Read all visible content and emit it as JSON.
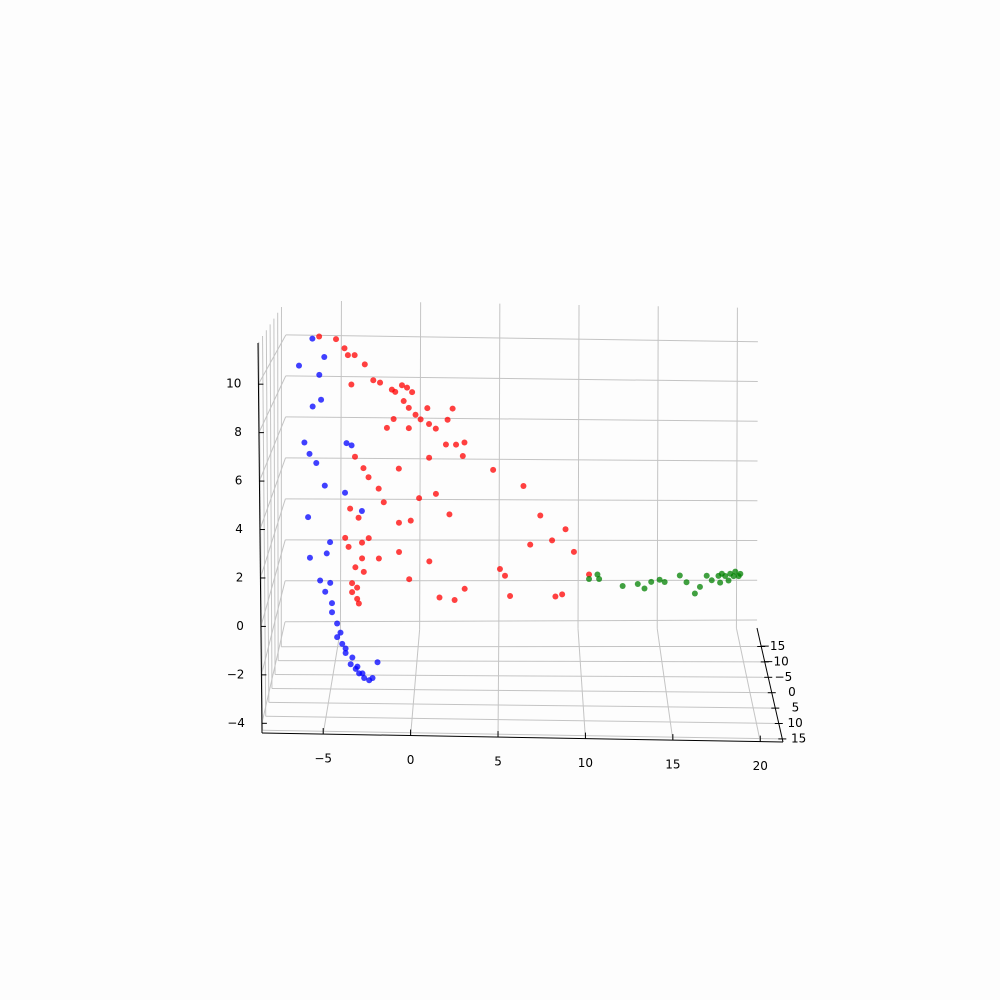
{
  "chart_data": {
    "type": "scatter3d",
    "xlim": [
      -8.5,
      21.3
    ],
    "ylim": [
      -21,
      16
    ],
    "zlim": [
      -4.4,
      11.7
    ],
    "xticks": [
      {
        "value": -5,
        "label": "−5"
      },
      0,
      5,
      10,
      15,
      20
    ],
    "yticks": [
      {
        "value": -15,
        "label": "−15"
      },
      {
        "value": -10,
        "label": "−10"
      },
      {
        "value": -5,
        "label": "−5"
      },
      0,
      5,
      10,
      15
    ],
    "zticks": [
      {
        "value": -4,
        "label": "−4"
      },
      {
        "value": -2,
        "label": "−2"
      },
      0,
      2,
      4,
      6,
      8,
      10
    ],
    "grid": true,
    "series": [
      {
        "color": "#ff0000",
        "x": [
          -5.6,
          -4.6,
          -4.1,
          -3.9,
          -3.5,
          -2.9,
          -2.4,
          -2.0,
          -3.7,
          -1.3,
          -1.1,
          -0.7,
          -0.4,
          -0.1,
          -0.6,
          -0.3,
          0.1,
          0.4,
          0.8,
          0.9,
          1.3,
          2.3,
          2.0,
          1.9,
          2.5,
          3.0,
          2.9,
          -1.2,
          -1.6,
          -0.3,
          0.9,
          4.7,
          6.5,
          7.5,
          9.0,
          9.5,
          8.2,
          6.9,
          5.1,
          5.4,
          5.7,
          2.4,
          1.5,
          3.0,
          0.9,
          -0.3,
          -0.9,
          -2.1,
          -2.7,
          -3.3,
          -3.8,
          -3.7,
          -3.4,
          -3.1,
          -3.0,
          -3.5,
          -3.9,
          -2.7,
          -2.1,
          -0.9,
          0.3,
          1.3,
          2.1,
          -3.5,
          -3.0,
          -4.1,
          -0.9,
          -0.2,
          -1.8,
          10.4,
          8.4,
          8.8,
          -3.4,
          -3.3,
          -3.7,
          -3.1
        ],
        "y": [
          0,
          0,
          0,
          0,
          0,
          0,
          0,
          0,
          0,
          0,
          0,
          0,
          0,
          0,
          0,
          0,
          0,
          0,
          0,
          0,
          0,
          0,
          0,
          0,
          0,
          0,
          0,
          0,
          0,
          0,
          0,
          0,
          0,
          0,
          0,
          0,
          0,
          0,
          0,
          0,
          0,
          0,
          0,
          0,
          0,
          0,
          0,
          0,
          0,
          0,
          0,
          0,
          0,
          0,
          0,
          0,
          0,
          0,
          0,
          0,
          0,
          0,
          0,
          0,
          0,
          0,
          0,
          0,
          0,
          0,
          0,
          0,
          0,
          0,
          0,
          0
        ],
        "z": [
          11.2,
          11.1,
          10.7,
          10.4,
          10.4,
          10.0,
          9.3,
          9.2,
          9.1,
          8.9,
          8.8,
          9.1,
          9.0,
          8.8,
          8.4,
          8.1,
          7.8,
          7.6,
          8.1,
          7.4,
          7.2,
          8.1,
          7.6,
          6.5,
          6.5,
          6.6,
          6.0,
          7.6,
          7.2,
          7.2,
          5.9,
          5.4,
          4.7,
          3.4,
          2.8,
          1.8,
          2.3,
          2.1,
          1.0,
          0.7,
          -0.2,
          -0.4,
          -0.3,
          0.1,
          1.3,
          0.5,
          1.7,
          1.4,
          2.3,
          3.2,
          3.6,
          0.3,
          -0.4,
          1.4,
          0.8,
          1.0,
          1.9,
          5.0,
          4.5,
          5.4,
          4.1,
          4.3,
          3.4,
          5.9,
          5.4,
          2.3,
          3.0,
          3.1,
          3.9,
          0.8,
          -0.2,
          -0.1,
          0.1,
          -0.6,
          -0.1,
          2.1
        ]
      },
      {
        "color": "#0000ff",
        "x": [
          -6.0,
          -5.3,
          -6.8,
          -5.6,
          -6.0,
          -5.5,
          -6.5,
          -6.2,
          -5.8,
          -4.0,
          -3.7,
          -5.3,
          -4.1,
          -3.1,
          -6.3,
          -5.0,
          -5.2,
          -6.2,
          -5.6,
          -5.0,
          -5.3,
          -4.9,
          -4.9,
          -4.6,
          -4.4,
          -4.3,
          -4.1,
          -3.8,
          -3.5,
          -3.3,
          -3.0,
          -2.7,
          -2.5,
          -2.2,
          -4.6,
          -4.1,
          -3.7,
          -3.4,
          -3.1
        ],
        "y": [
          0,
          0,
          0,
          0,
          0,
          0,
          0,
          0,
          0,
          0,
          0,
          0,
          0,
          0,
          0,
          0,
          0,
          0,
          0,
          0,
          0,
          0,
          0,
          0,
          0,
          0,
          0,
          0,
          0,
          0,
          0,
          0,
          0,
          0,
          0,
          0,
          0,
          0,
          0
        ],
        "z": [
          11.1,
          10.3,
          9.9,
          9.5,
          8.1,
          8.4,
          6.5,
          6.0,
          5.6,
          6.5,
          6.4,
          4.6,
          4.3,
          3.5,
          3.2,
          2.1,
          1.6,
          1.4,
          0.4,
          0.3,
          -0.1,
          -0.6,
          -1.0,
          -1.5,
          -1.9,
          -2.4,
          -2.8,
          -3.3,
          -3.5,
          -3.7,
          -3.9,
          -4.0,
          -3.9,
          -3.2,
          -2.1,
          -2.6,
          -3.0,
          -3.4,
          -3.7
        ]
      },
      {
        "color": "#008000",
        "x": [
          10.4,
          10.9,
          11.0,
          12.4,
          13.3,
          13.7,
          14.1,
          14.6,
          14.9,
          15.8,
          16.2,
          16.7,
          17.0,
          17.4,
          17.7,
          18.1,
          18.3,
          18.5,
          18.8,
          19.0,
          19.1,
          18.7,
          18.2,
          19.3,
          19.4
        ],
        "y": [
          0,
          0,
          0,
          0,
          0,
          0,
          0,
          0,
          0,
          0,
          0,
          0,
          0,
          0,
          0,
          0,
          0,
          0,
          0,
          0,
          0,
          0,
          0,
          0,
          0
        ],
        "z": [
          0.6,
          0.8,
          0.6,
          0.3,
          0.4,
          0.2,
          0.5,
          0.6,
          0.5,
          0.8,
          0.5,
          0.0,
          0.3,
          0.8,
          0.6,
          0.8,
          0.9,
          0.8,
          0.9,
          0.8,
          1.0,
          0.6,
          0.5,
          0.8,
          0.9
        ]
      }
    ]
  }
}
